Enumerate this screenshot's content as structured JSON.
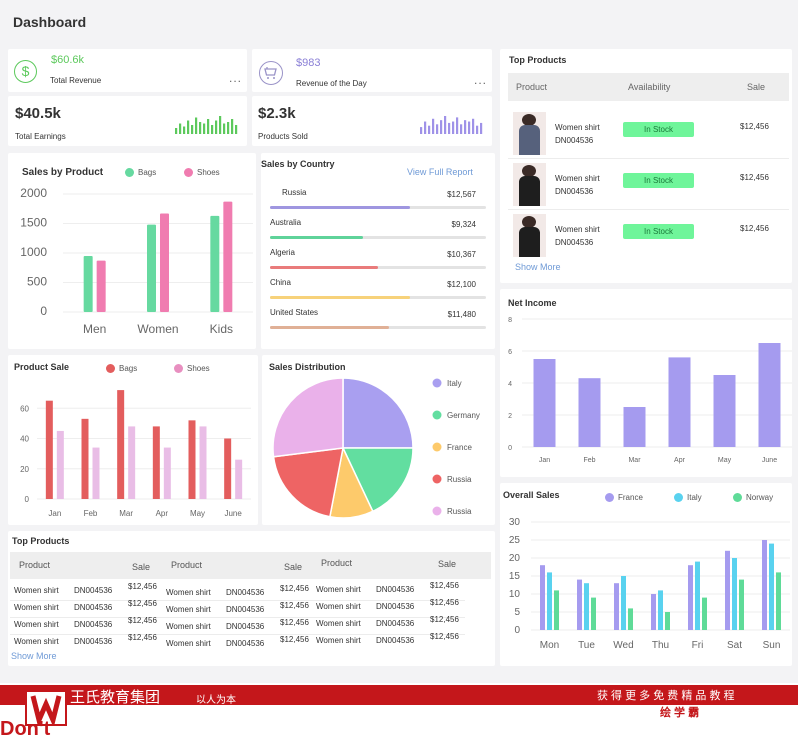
{
  "page": {
    "title": "Dashboard"
  },
  "stats": {
    "total_revenue": {
      "value": "$60.6k",
      "label": "Total Revenue",
      "icon": "dollar-icon",
      "color": "#5cc95c"
    },
    "revenue_day": {
      "value": "$983",
      "label": "Revenue of the Day",
      "icon": "cart-icon",
      "color": "#8a7fd6"
    },
    "total_earnings": {
      "value": "$40.5k",
      "label": "Total Earnings",
      "spark": [
        4,
        7,
        5,
        9,
        6,
        11,
        8,
        7,
        10,
        6,
        9,
        12,
        7,
        8,
        10,
        6
      ],
      "color": "#5cc95c"
    },
    "products_sold": {
      "value": "$2.3k",
      "label": "Products Sold",
      "spark": [
        5,
        9,
        6,
        11,
        7,
        10,
        13,
        8,
        9,
        12,
        7,
        10,
        9,
        11,
        6,
        8
      ],
      "color": "#9f92e8"
    },
    "more": "..."
  },
  "sales_by_product": {
    "title": "Sales by Product",
    "chart_data": {
      "type": "bar",
      "categories": [
        "Men",
        "Women",
        "Kids"
      ],
      "series": [
        {
          "name": "Bags",
          "values": [
            950,
            1480,
            1630
          ],
          "color": "#66d9a0"
        },
        {
          "name": "Shoes",
          "values": [
            870,
            1670,
            1870
          ],
          "color": "#f07cb0"
        }
      ],
      "ylim": [
        0,
        2000
      ],
      "yticks": [
        "0",
        "500",
        "1000",
        "1500",
        "2000"
      ]
    }
  },
  "sales_by_country": {
    "title": "Sales by Country",
    "link": "View Full Report",
    "rows": [
      {
        "country": "Russia",
        "amount": "$12,567",
        "pct": 0.65,
        "color": "#9f96e0"
      },
      {
        "country": "Australia",
        "amount": "$9,324",
        "pct": 0.43,
        "color": "#5fd39a"
      },
      {
        "country": "Algeria",
        "amount": "$10,367",
        "pct": 0.5,
        "color": "#e97b7b"
      },
      {
        "country": "China",
        "amount": "$12,100",
        "pct": 0.65,
        "color": "#f7d27a"
      },
      {
        "country": "United States",
        "amount": "$11,480",
        "pct": 0.55,
        "color": "#e0b096"
      }
    ]
  },
  "top_products_right": {
    "title": "Top Products",
    "headers": [
      "Product",
      "Availability",
      "Sale"
    ],
    "rows": [
      {
        "name": "Women shirt",
        "code": "DN004536",
        "status": "In Stock",
        "sale": "$12,456"
      },
      {
        "name": "Women shirt",
        "code": "DN004536",
        "status": "In Stock",
        "sale": "$12,456"
      },
      {
        "name": "Women shirt",
        "code": "DN004536",
        "status": "In Stock",
        "sale": "$12,456"
      }
    ],
    "show_more": "Show More"
  },
  "net_income": {
    "title": "Net Income",
    "chart_data": {
      "type": "bar",
      "categories": [
        "Jan",
        "Feb",
        "Mar",
        "Apr",
        "May",
        "June"
      ],
      "values": [
        5.5,
        4.3,
        2.5,
        5.6,
        4.5,
        6.5
      ],
      "ylim": [
        0,
        8
      ],
      "yticks": [
        "0",
        "2",
        "4",
        "6",
        "8"
      ],
      "color": "#a59bef"
    }
  },
  "product_sale": {
    "title": "Product Sale",
    "chart_data": {
      "type": "bar",
      "categories": [
        "Jan",
        "Feb",
        "Mar",
        "Apr",
        "May",
        "June"
      ],
      "series": [
        {
          "name": "Bags",
          "values": [
            65,
            53,
            72,
            48,
            52,
            40
          ],
          "color": "#e35d5d"
        },
        {
          "name": "Shoes",
          "values": [
            45,
            34,
            48,
            34,
            48,
            26
          ],
          "color": "#e9bde6"
        }
      ],
      "ylim": [
        0,
        80
      ],
      "yticks": [
        "0",
        "20",
        "40",
        "60"
      ]
    }
  },
  "sales_distribution": {
    "title": "Sales Distribution",
    "chart_data": {
      "type": "pie",
      "slices": [
        {
          "name": "Italy",
          "value": 25,
          "color": "#a99ff0"
        },
        {
          "name": "Germany",
          "value": 18,
          "color": "#62dea0"
        },
        {
          "name": "France",
          "value": 10,
          "color": "#fdca6b"
        },
        {
          "name": "Russia",
          "value": 20,
          "color": "#ee6464"
        },
        {
          "name": "Russia",
          "value": 27,
          "color": "#eab1ea"
        }
      ]
    }
  },
  "overall_sales": {
    "title": "Overall Sales",
    "chart_data": {
      "type": "bar",
      "categories": [
        "Mon",
        "Tue",
        "Wed",
        "Thu",
        "Fri",
        "Sat",
        "Sun"
      ],
      "series": [
        {
          "name": "France",
          "values": [
            18,
            14,
            13,
            10,
            18,
            22,
            25
          ],
          "color": "#a59bef"
        },
        {
          "name": "Italy",
          "values": [
            16,
            13,
            15,
            11,
            19,
            20,
            24
          ],
          "color": "#59d2ef"
        },
        {
          "name": "Norway",
          "values": [
            11,
            9,
            6,
            5,
            9,
            14,
            16
          ],
          "color": "#5fdb98"
        }
      ],
      "ylim": [
        0,
        30
      ],
      "yticks": [
        "0",
        "5",
        "10",
        "15",
        "20",
        "25",
        "30"
      ]
    }
  },
  "top_products_bottom": {
    "title": "Top Products",
    "col_headers": [
      "Product",
      "Sale"
    ],
    "row": {
      "name": "Women shirt",
      "code": "DN004536",
      "sale": "$12,456"
    },
    "show_more": "Show More"
  },
  "footer": {
    "brand": "王氏教育集团",
    "slogan": "以人为本",
    "right_text": "获 得 更 多 免 费 精 品 教 程",
    "right_sub": "绘 学 霸",
    "logo_text": "Don't"
  }
}
